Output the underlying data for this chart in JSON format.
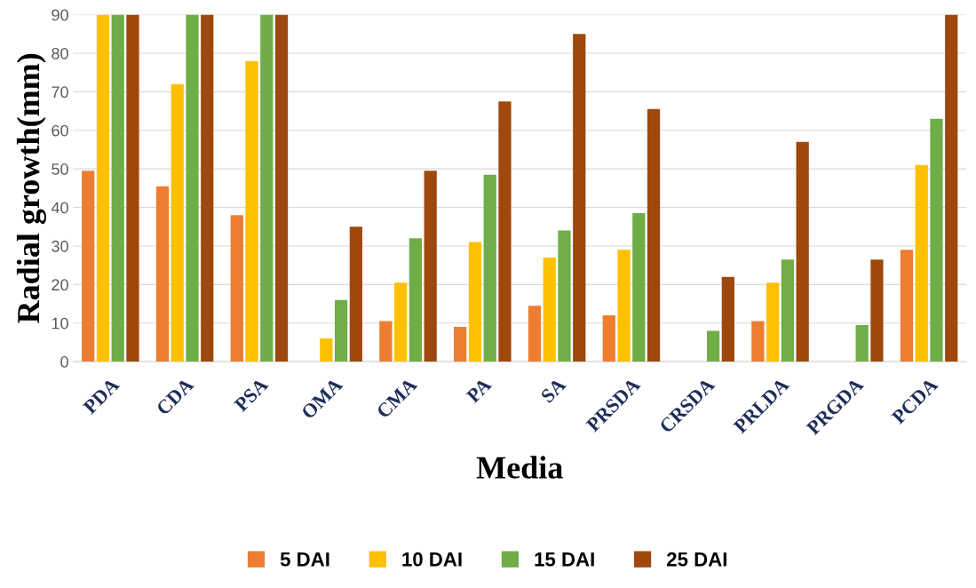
{
  "chart_data": {
    "type": "bar",
    "xlabel": "Media",
    "ylabel": "Radial growth(mm)",
    "categories": [
      "PDA",
      "CDA",
      "PSA",
      "OMA",
      "CMA",
      "PA",
      "SA",
      "PRSDA",
      "CRSDA",
      "PRLDA",
      "PRGDA",
      "PCDA"
    ],
    "series": [
      {
        "name": "5 DAI",
        "color": "#ed7d31",
        "values": [
          49.5,
          45.5,
          38,
          0,
          10.5,
          9,
          14.5,
          12,
          0,
          10.5,
          0,
          29
        ]
      },
      {
        "name": "10 DAI",
        "color": "#ffc000",
        "values": [
          90,
          72,
          78,
          6,
          20.5,
          31,
          27,
          29,
          0,
          20.5,
          0,
          51
        ]
      },
      {
        "name": "15 DAI",
        "color": "#70ad47",
        "values": [
          90,
          90,
          90,
          16,
          32,
          48.5,
          34,
          38.5,
          8,
          26.5,
          9.5,
          63
        ]
      },
      {
        "name": "25 DAI",
        "color": "#9e480e",
        "values": [
          90,
          90,
          90,
          35,
          49.5,
          67.5,
          85,
          65.5,
          22,
          57,
          26.5,
          90
        ]
      }
    ],
    "ylim": [
      0,
      90
    ],
    "yticks": [
      0,
      10,
      20,
      30,
      40,
      50,
      60,
      70,
      80,
      90
    ],
    "grid": "y",
    "legend": "bottom"
  }
}
